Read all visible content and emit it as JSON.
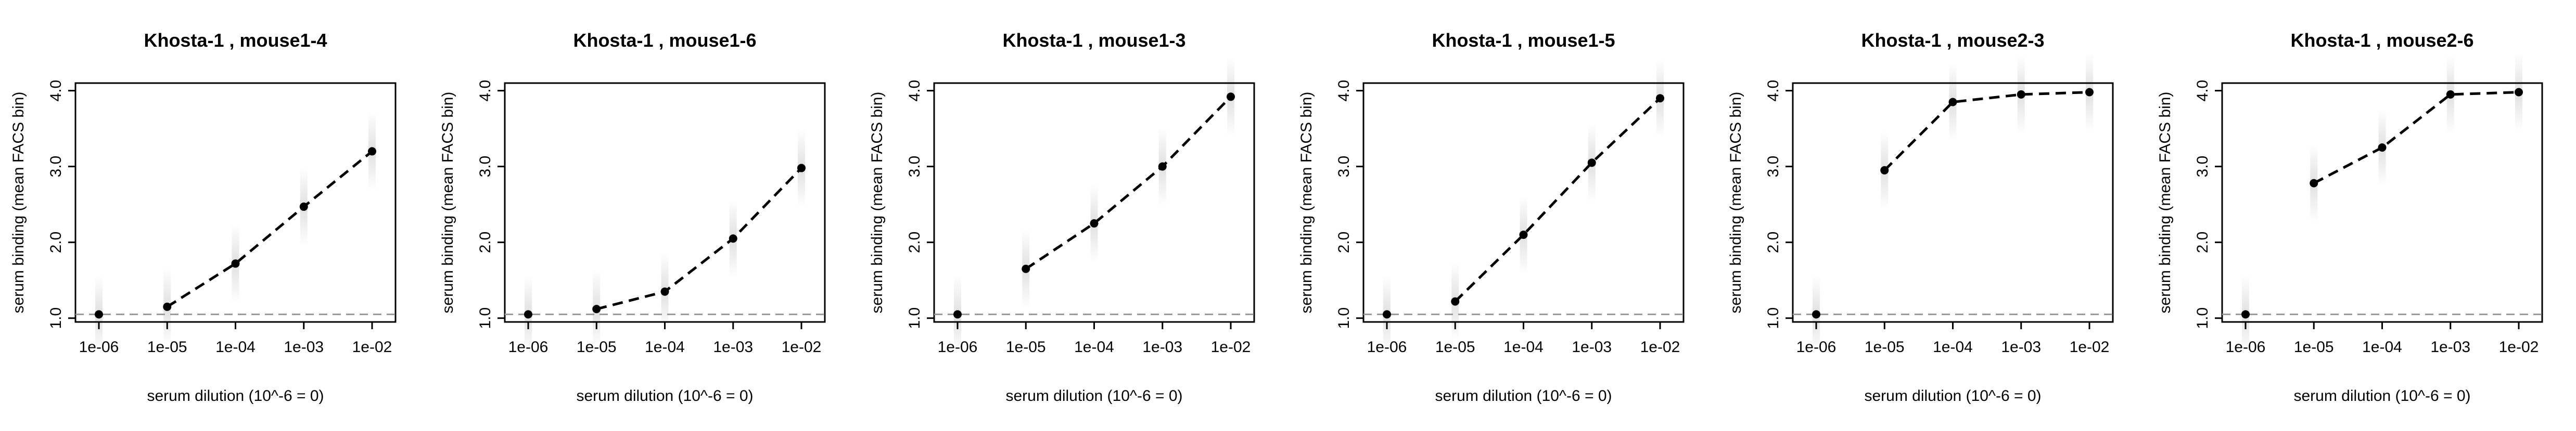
{
  "chart_data": [
    {
      "type": "line",
      "title": "Khosta-1 , mouse1-4",
      "xlabel": "serum dilution (10^-6 = 0)",
      "ylabel": "serum binding (mean FACS bin)",
      "x": [
        "1e-06",
        "1e-05",
        "1e-04",
        "1e-03",
        "1e-02"
      ],
      "xscale": "log",
      "y": [
        1.05,
        1.15,
        1.72,
        2.47,
        3.2
      ],
      "baseline": 1.05,
      "ylim": [
        0.95,
        4.1
      ],
      "yticks": [
        "1.0",
        "2.0",
        "3.0",
        "4.0"
      ]
    },
    {
      "type": "line",
      "title": "Khosta-1 , mouse1-6",
      "xlabel": "serum dilution (10^-6 = 0)",
      "ylabel": "serum binding (mean FACS bin)",
      "x": [
        "1e-06",
        "1e-05",
        "1e-04",
        "1e-03",
        "1e-02"
      ],
      "xscale": "log",
      "y": [
        1.05,
        1.12,
        1.35,
        2.05,
        2.98
      ],
      "baseline": 1.05,
      "ylim": [
        0.95,
        4.1
      ],
      "yticks": [
        "1.0",
        "2.0",
        "3.0",
        "4.0"
      ]
    },
    {
      "type": "line",
      "title": "Khosta-1 , mouse1-3",
      "xlabel": "serum dilution (10^-6 = 0)",
      "ylabel": "serum binding (mean FACS bin)",
      "x": [
        "1e-06",
        "1e-05",
        "1e-04",
        "1e-03",
        "1e-02"
      ],
      "xscale": "log",
      "y": [
        1.05,
        1.65,
        2.25,
        3.0,
        3.92
      ],
      "baseline": 1.05,
      "ylim": [
        0.95,
        4.1
      ],
      "yticks": [
        "1.0",
        "2.0",
        "3.0",
        "4.0"
      ]
    },
    {
      "type": "line",
      "title": "Khosta-1 , mouse1-5",
      "xlabel": "serum dilution (10^-6 = 0)",
      "ylabel": "serum binding (mean FACS bin)",
      "x": [
        "1e-06",
        "1e-05",
        "1e-04",
        "1e-03",
        "1e-02"
      ],
      "xscale": "log",
      "y": [
        1.05,
        1.22,
        2.1,
        3.05,
        3.9
      ],
      "baseline": 1.05,
      "ylim": [
        0.95,
        4.1
      ],
      "yticks": [
        "1.0",
        "2.0",
        "3.0",
        "4.0"
      ]
    },
    {
      "type": "line",
      "title": "Khosta-1 , mouse2-3",
      "xlabel": "serum dilution (10^-6 = 0)",
      "ylabel": "serum binding (mean FACS bin)",
      "x": [
        "1e-06",
        "1e-05",
        "1e-04",
        "1e-03",
        "1e-02"
      ],
      "xscale": "log",
      "y": [
        1.05,
        2.95,
        3.85,
        3.95,
        3.98
      ],
      "baseline": 1.05,
      "ylim": [
        0.95,
        4.1
      ],
      "yticks": [
        "1.0",
        "2.0",
        "3.0",
        "4.0"
      ]
    },
    {
      "type": "line",
      "title": "Khosta-1 , mouse2-6",
      "xlabel": "serum dilution (10^-6 = 0)",
      "ylabel": "serum binding (mean FACS bin)",
      "x": [
        "1e-06",
        "1e-05",
        "1e-04",
        "1e-03",
        "1e-02"
      ],
      "xscale": "log",
      "y": [
        1.05,
        2.78,
        3.25,
        3.95,
        3.98
      ],
      "baseline": 1.05,
      "ylim": [
        0.95,
        4.1
      ],
      "yticks": [
        "1.0",
        "2.0",
        "3.0",
        "4.0"
      ]
    }
  ]
}
